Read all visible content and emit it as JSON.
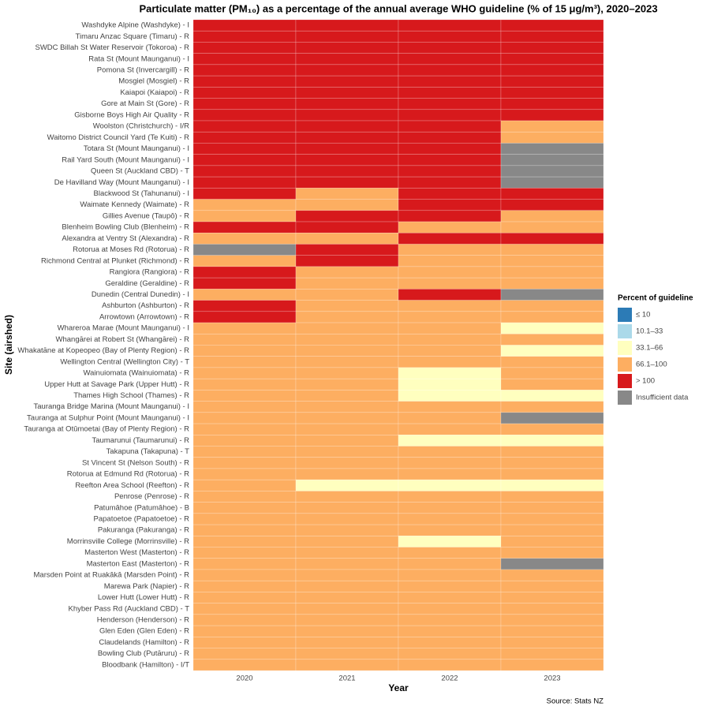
{
  "chart_data": {
    "type": "heatmap",
    "title": "Particulate matter (PM₁₀) as a percentage of the annual average WHO guideline (% of 15 μg/m³), 2020–2023",
    "x_label": "Year",
    "y_label": "Site (airshed)",
    "source": "Source: Stats NZ",
    "legend_title": "Percent of guideline",
    "legend": [
      {
        "label": "≤ 10",
        "color": "#2c7bb6"
      },
      {
        "label": "10.1–33",
        "color": "#abd9e9"
      },
      {
        "label": "33.1–66",
        "color": "#ffffbf"
      },
      {
        "label": "66.1–100",
        "color": "#fdae61"
      },
      {
        "label": "> 100",
        "color": "#d7191c"
      },
      {
        "label": "Insufficient data",
        "color": "#888888"
      }
    ],
    "categories": [
      "2020",
      "2021",
      "2022",
      "2023"
    ],
    "rows": [
      "Washdyke Alpine (Washdyke) - I",
      "Timaru Anzac Square (Timaru) - R",
      "SWDC Billah St Water Reservoir (Tokoroa) - R",
      "Rata St (Mount Maunganui) - I",
      "Pomona St (Invercargill) - R",
      "Mosgiel (Mosgiel) - R",
      "Kaiapoi (Kaiapoi) - R",
      "Gore at Main St (Gore) - R",
      "Gisborne Boys High Air Quality - R",
      "Woolston (Christchurch) - I/R",
      "Waitomo District Council Yard (Te Kuiti) - R",
      "Totara St (Mount Maunganui) - I",
      "Rail Yard South (Mount Maunganui) - I",
      "Queen St (Auckland CBD) - T",
      "De Havilland Way (Mount Maunganui) - I",
      "Blackwood St (Tahunanui) - I",
      "Waimate Kennedy (Waimate) - R",
      "Gillies Avenue (Taupō) - R",
      "Blenheim Bowling Club (Blenheim) - R",
      "Alexandra at Ventry St (Alexandra) - R",
      "Rotorua at Moses Rd (Rotorua) - R",
      "Richmond Central at Plunket (Richmond) - R",
      "Rangiora (Rangiora) - R",
      "Geraldine (Geraldine) - R",
      "Dunedin (Central Dunedin) - I",
      "Ashburton (Ashburton) - R",
      "Arrowtown (Arrowtown) - R",
      "Whareroa Marae (Mount Maunganui) - I",
      "Whangārei at Robert St (Whangārei) - R",
      "Whakatāne at Kopeopeo (Bay of Plenty Region) - R",
      "Wellington Central (Wellington City) - T",
      "Wainuiomata (Wainuiomata) - R",
      "Upper Hutt at Savage Park (Upper Hutt) - R",
      "Thames High School (Thames) - R",
      "Tauranga Bridge Marina (Mount Maunganui) - I",
      "Tauranga at Sulphur Point (Mount Maunganui) - I",
      "Tauranga at Otūmoetai (Bay of Plenty Region) - R",
      "Taumarunui (Taumarunui) - R",
      "Takapuna (Takapuna) - T",
      "St Vincent St (Nelson South) - R",
      "Rotorua at Edmund Rd (Rotorua) - R",
      "Reefton Area School (Reefton) - R",
      "Penrose (Penrose) - R",
      "Patumāhoe (Patumāhoe) - B",
      "Papatoetoe (Papatoetoe) - R",
      "Pakuranga (Pakuranga) - R",
      "Morrinsville College (Morrinsville) - R",
      "Masterton West (Masterton) - R",
      "Masterton East (Masterton) - R",
      "Marsden Point at Ruakākā (Marsden Point) - R",
      "Marewa Park (Napier) - R",
      "Lower Hutt (Lower Hutt) - R",
      "Khyber Pass Rd (Auckland CBD) - T",
      "Henderson (Henderson) - R",
      "Glen Eden (Glen Eden) - R",
      "Claudelands (Hamilton) - R",
      "Bowling Club (Putāruru) - R",
      "Bloodbank (Hamilton) - I/T"
    ],
    "values": [
      [
        "> 100",
        "> 100",
        "> 100",
        "> 100"
      ],
      [
        "> 100",
        "> 100",
        "> 100",
        "> 100"
      ],
      [
        "> 100",
        "> 100",
        "> 100",
        "> 100"
      ],
      [
        "> 100",
        "> 100",
        "> 100",
        "> 100"
      ],
      [
        "> 100",
        "> 100",
        "> 100",
        "> 100"
      ],
      [
        "> 100",
        "> 100",
        "> 100",
        "> 100"
      ],
      [
        "> 100",
        "> 100",
        "> 100",
        "> 100"
      ],
      [
        "> 100",
        "> 100",
        "> 100",
        "> 100"
      ],
      [
        "> 100",
        "> 100",
        "> 100",
        "> 100"
      ],
      [
        "> 100",
        "> 100",
        "> 100",
        "66.1–100"
      ],
      [
        "> 100",
        "> 100",
        "> 100",
        "66.1–100"
      ],
      [
        "> 100",
        "> 100",
        "> 100",
        "Insufficient data"
      ],
      [
        "> 100",
        "> 100",
        "> 100",
        "Insufficient data"
      ],
      [
        "> 100",
        "> 100",
        "> 100",
        "Insufficient data"
      ],
      [
        "> 100",
        "> 100",
        "> 100",
        "Insufficient data"
      ],
      [
        "> 100",
        "66.1–100",
        "> 100",
        "> 100"
      ],
      [
        "66.1–100",
        "66.1–100",
        "> 100",
        "> 100"
      ],
      [
        "66.1–100",
        "> 100",
        "> 100",
        "66.1–100"
      ],
      [
        "> 100",
        "> 100",
        "66.1–100",
        "66.1–100"
      ],
      [
        "66.1–100",
        "66.1–100",
        "> 100",
        "> 100"
      ],
      [
        "Insufficient data",
        "> 100",
        "66.1–100",
        "66.1–100"
      ],
      [
        "66.1–100",
        "> 100",
        "66.1–100",
        "66.1–100"
      ],
      [
        "> 100",
        "66.1–100",
        "66.1–100",
        "66.1–100"
      ],
      [
        "> 100",
        "66.1–100",
        "66.1–100",
        "66.1–100"
      ],
      [
        "66.1–100",
        "66.1–100",
        "> 100",
        "Insufficient data"
      ],
      [
        "> 100",
        "66.1–100",
        "66.1–100",
        "66.1–100"
      ],
      [
        "> 100",
        "66.1–100",
        "66.1–100",
        "66.1–100"
      ],
      [
        "66.1–100",
        "66.1–100",
        "66.1–100",
        "33.1–66"
      ],
      [
        "66.1–100",
        "66.1–100",
        "66.1–100",
        "66.1–100"
      ],
      [
        "66.1–100",
        "66.1–100",
        "66.1–100",
        "33.1–66"
      ],
      [
        "66.1–100",
        "66.1–100",
        "66.1–100",
        "66.1–100"
      ],
      [
        "66.1–100",
        "66.1–100",
        "33.1–66",
        "66.1–100"
      ],
      [
        "66.1–100",
        "66.1–100",
        "33.1–66",
        "66.1–100"
      ],
      [
        "66.1–100",
        "66.1–100",
        "33.1–66",
        "33.1–66"
      ],
      [
        "66.1–100",
        "66.1–100",
        "66.1–100",
        "66.1–100"
      ],
      [
        "66.1–100",
        "66.1–100",
        "66.1–100",
        "Insufficient data"
      ],
      [
        "66.1–100",
        "66.1–100",
        "66.1–100",
        "66.1–100"
      ],
      [
        "66.1–100",
        "66.1–100",
        "33.1–66",
        "33.1–66"
      ],
      [
        "66.1–100",
        "66.1–100",
        "66.1–100",
        "66.1–100"
      ],
      [
        "66.1–100",
        "66.1–100",
        "66.1–100",
        "66.1–100"
      ],
      [
        "66.1–100",
        "66.1–100",
        "66.1–100",
        "66.1–100"
      ],
      [
        "66.1–100",
        "33.1–66",
        "33.1–66",
        "33.1–66"
      ],
      [
        "66.1–100",
        "66.1–100",
        "66.1–100",
        "66.1–100"
      ],
      [
        "66.1–100",
        "66.1–100",
        "66.1–100",
        "66.1–100"
      ],
      [
        "66.1–100",
        "66.1–100",
        "66.1–100",
        "66.1–100"
      ],
      [
        "66.1–100",
        "66.1–100",
        "66.1–100",
        "66.1–100"
      ],
      [
        "66.1–100",
        "66.1–100",
        "33.1–66",
        "66.1–100"
      ],
      [
        "66.1–100",
        "66.1–100",
        "66.1–100",
        "66.1–100"
      ],
      [
        "66.1–100",
        "66.1–100",
        "66.1–100",
        "Insufficient data"
      ],
      [
        "66.1–100",
        "66.1–100",
        "66.1–100",
        "66.1–100"
      ],
      [
        "66.1–100",
        "66.1–100",
        "66.1–100",
        "66.1–100"
      ],
      [
        "66.1–100",
        "66.1–100",
        "66.1–100",
        "66.1–100"
      ],
      [
        "66.1–100",
        "66.1–100",
        "66.1–100",
        "66.1–100"
      ],
      [
        "66.1–100",
        "66.1–100",
        "66.1–100",
        "66.1–100"
      ],
      [
        "66.1–100",
        "66.1–100",
        "66.1–100",
        "66.1–100"
      ],
      [
        "66.1–100",
        "66.1–100",
        "66.1–100",
        "66.1–100"
      ],
      [
        "66.1–100",
        "66.1–100",
        "66.1–100",
        "66.1–100"
      ],
      [
        "66.1–100",
        "66.1–100",
        "66.1–100",
        "66.1–100"
      ]
    ]
  }
}
